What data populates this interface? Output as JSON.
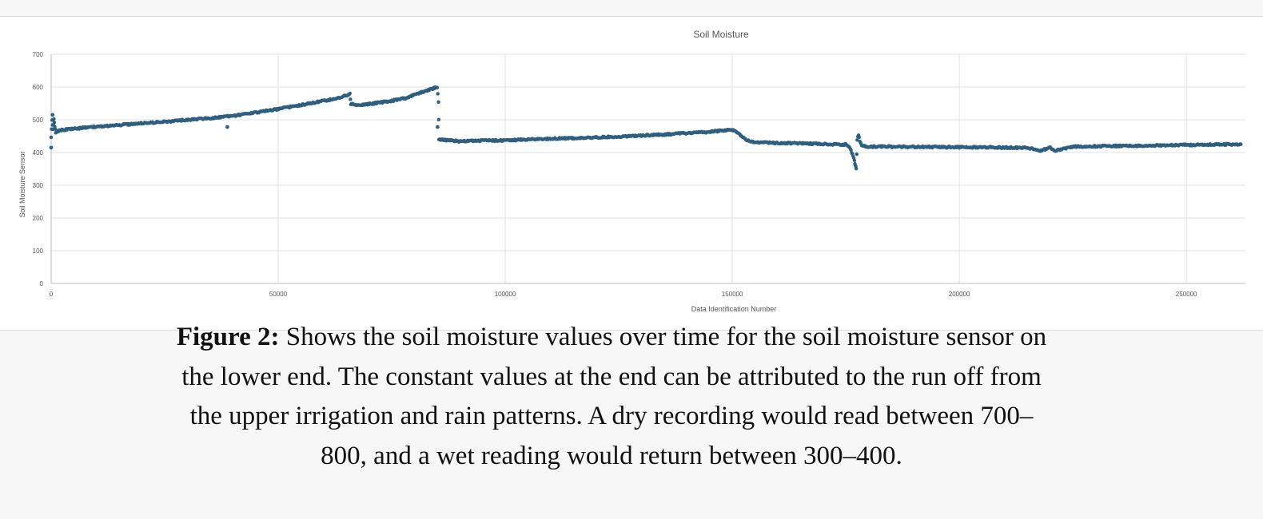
{
  "chart_data": {
    "type": "scatter",
    "title": "Soil Moisture",
    "xlabel": "Data Identification Number",
    "ylabel": "Soil Moisture Sensor",
    "xlim": [
      0,
      263000
    ],
    "ylim": [
      0,
      700
    ],
    "x_ticks": [
      0,
      50000,
      100000,
      150000,
      200000,
      250000
    ],
    "y_ticks": [
      0,
      100,
      200,
      300,
      400,
      500,
      600,
      700
    ],
    "grid": true,
    "legend": "none",
    "color": "#2e5f80",
    "series": [
      {
        "points": [
          [
            0,
            445
          ],
          [
            200,
            500
          ],
          [
            400,
            470
          ],
          [
            600,
            505
          ],
          [
            800,
            480
          ],
          [
            1000,
            462
          ],
          [
            1500,
            466
          ],
          [
            2000,
            468
          ],
          [
            4000,
            472
          ],
          [
            6000,
            474
          ],
          [
            8000,
            477
          ],
          [
            10000,
            479
          ],
          [
            15000,
            484
          ],
          [
            20000,
            489
          ],
          [
            25000,
            494
          ],
          [
            30000,
            500
          ],
          [
            35000,
            505
          ],
          [
            40000,
            512
          ],
          [
            45000,
            522
          ],
          [
            50000,
            533
          ],
          [
            55000,
            545
          ],
          [
            60000,
            558
          ],
          [
            62000,
            563
          ],
          [
            64000,
            570
          ],
          [
            65000,
            574
          ],
          [
            65800,
            580
          ],
          [
            66000,
            548
          ],
          [
            68000,
            545
          ],
          [
            70000,
            548
          ],
          [
            72000,
            552
          ],
          [
            75000,
            558
          ],
          [
            78000,
            566
          ],
          [
            80000,
            576
          ],
          [
            82000,
            586
          ],
          [
            84000,
            595
          ],
          [
            85000,
            600
          ],
          [
            85300,
            556
          ],
          [
            85400,
            440
          ],
          [
            87000,
            438
          ],
          [
            88000,
            437
          ],
          [
            90000,
            434
          ],
          [
            95000,
            436
          ],
          [
            100000,
            437
          ],
          [
            105000,
            440
          ],
          [
            110000,
            442
          ],
          [
            115000,
            444
          ],
          [
            120000,
            446
          ],
          [
            125000,
            449
          ],
          [
            130000,
            452
          ],
          [
            135000,
            455
          ],
          [
            140000,
            459
          ],
          [
            145000,
            463
          ],
          [
            148000,
            467
          ],
          [
            150000,
            469
          ],
          [
            151000,
            463
          ],
          [
            152000,
            450
          ],
          [
            153000,
            438
          ],
          [
            155000,
            431
          ],
          [
            160000,
            429
          ],
          [
            165000,
            428
          ],
          [
            170000,
            426
          ],
          [
            175000,
            424
          ],
          [
            175500,
            420
          ],
          [
            176000,
            412
          ],
          [
            176300,
            400
          ],
          [
            176600,
            388
          ],
          [
            176900,
            374
          ],
          [
            177100,
            362
          ],
          [
            177300,
            352
          ],
          [
            177500,
            440
          ],
          [
            177800,
            454
          ],
          [
            178100,
            435
          ],
          [
            178500,
            420
          ],
          [
            180000,
            418
          ],
          [
            185000,
            418
          ],
          [
            190000,
            417
          ],
          [
            195000,
            417
          ],
          [
            200000,
            416
          ],
          [
            205000,
            416
          ],
          [
            210000,
            415
          ],
          [
            215000,
            415
          ],
          [
            218000,
            405
          ],
          [
            220000,
            416
          ],
          [
            221000,
            406
          ],
          [
            225000,
            418
          ],
          [
            230000,
            419
          ],
          [
            235000,
            420
          ],
          [
            240000,
            421
          ],
          [
            245000,
            422
          ],
          [
            250000,
            423
          ],
          [
            255000,
            424
          ],
          [
            260000,
            425
          ],
          [
            262000,
            425
          ]
        ],
        "outliers": [
          [
            0,
            415
          ],
          [
            300,
            515
          ],
          [
            38800,
            478
          ],
          [
            85100,
            478
          ]
        ]
      }
    ]
  },
  "caption": {
    "label": "Figure 2:",
    "text": " Shows the soil moisture values over time for the soil moisture sensor on the lower end. The constant values at the end can be attributed to the run off from the upper irrigation and rain patterns. A dry recording would read between 700–800, and a wet reading would return between 300–400."
  }
}
